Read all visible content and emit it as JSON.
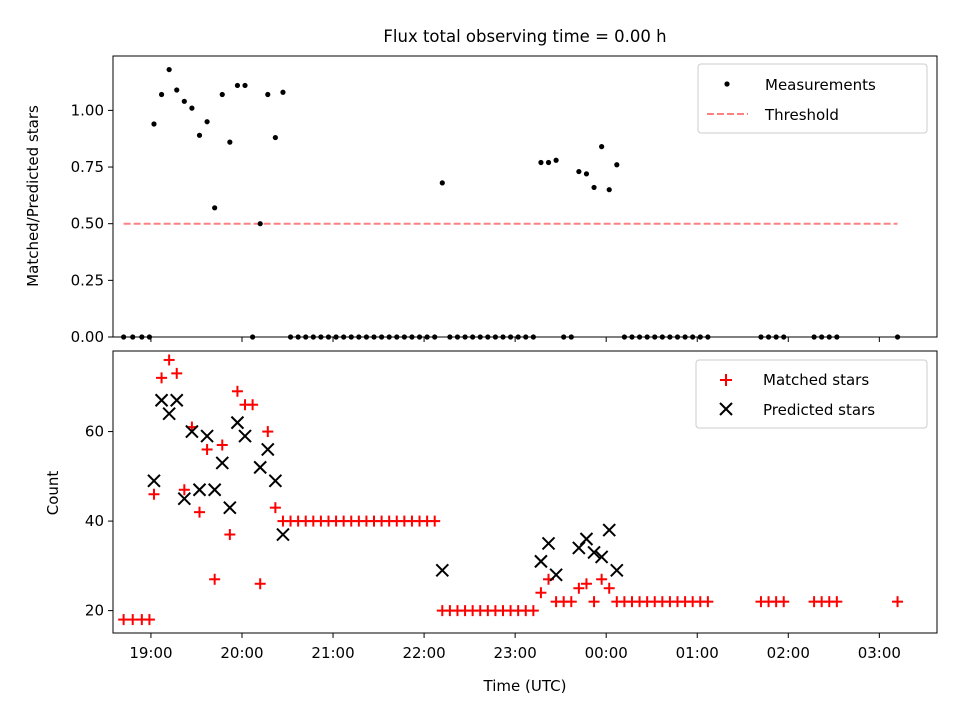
{
  "chart_data": [
    {
      "type": "scatter",
      "title": "Flux total observing time = 0.00 h",
      "xlabel": "",
      "ylabel": "Matched/Predicted stars",
      "ylim": [
        0,
        1.24
      ],
      "yticks": [
        "0.00",
        "0.25",
        "0.50",
        "0.75",
        "1.00"
      ],
      "xlim": [
        "18:35",
        "03:38"
      ],
      "legend_position": "upper right",
      "series": [
        {
          "name": "Measurements",
          "marker": "dot",
          "color": "#000000",
          "points": [
            [
              "18:42",
              0
            ],
            [
              "18:48",
              0
            ],
            [
              "18:54",
              0
            ],
            [
              "18:59",
              0
            ],
            [
              "19:02",
              0.94
            ],
            [
              "19:07",
              1.07
            ],
            [
              "19:12",
              1.18
            ],
            [
              "19:17",
              1.09
            ],
            [
              "19:22",
              1.04
            ],
            [
              "19:27",
              1.01
            ],
            [
              "19:32",
              0.89
            ],
            [
              "19:37",
              0.95
            ],
            [
              "19:42",
              0.57
            ],
            [
              "19:47",
              1.07
            ],
            [
              "19:52",
              0.86
            ],
            [
              "19:57",
              1.11
            ],
            [
              "20:02",
              1.11
            ],
            [
              "20:07",
              0
            ],
            [
              "20:12",
              0.5
            ],
            [
              "20:17",
              1.07
            ],
            [
              "20:22",
              0.88
            ],
            [
              "20:27",
              1.08
            ],
            [
              "20:32",
              0
            ],
            [
              "20:37",
              0
            ],
            [
              "20:42",
              0
            ],
            [
              "20:47",
              0
            ],
            [
              "20:52",
              0
            ],
            [
              "20:57",
              0
            ],
            [
              "21:02",
              0
            ],
            [
              "21:07",
              0
            ],
            [
              "21:12",
              0
            ],
            [
              "21:17",
              0
            ],
            [
              "21:22",
              0
            ],
            [
              "21:27",
              0
            ],
            [
              "21:32",
              0
            ],
            [
              "21:37",
              0
            ],
            [
              "21:42",
              0
            ],
            [
              "21:47",
              0
            ],
            [
              "21:52",
              0
            ],
            [
              "21:57",
              0
            ],
            [
              "22:02",
              0
            ],
            [
              "22:07",
              0
            ],
            [
              "22:12",
              0.68
            ],
            [
              "22:17",
              0
            ],
            [
              "22:22",
              0
            ],
            [
              "22:27",
              0
            ],
            [
              "22:32",
              0
            ],
            [
              "22:37",
              0
            ],
            [
              "22:42",
              0
            ],
            [
              "22:47",
              0
            ],
            [
              "22:52",
              0
            ],
            [
              "22:57",
              0
            ],
            [
              "23:02",
              0
            ],
            [
              "23:07",
              0
            ],
            [
              "23:12",
              0
            ],
            [
              "23:17",
              0.77
            ],
            [
              "23:22",
              0.77
            ],
            [
              "23:27",
              0.78
            ],
            [
              "23:32",
              0
            ],
            [
              "23:37",
              0
            ],
            [
              "23:42",
              0.73
            ],
            [
              "23:47",
              0.72
            ],
            [
              "23:52",
              0.66
            ],
            [
              "23:57",
              0.84
            ],
            [
              "00:02",
              0.65
            ],
            [
              "00:07",
              0.76
            ],
            [
              "00:12",
              0
            ],
            [
              "00:17",
              0
            ],
            [
              "00:22",
              0
            ],
            [
              "00:27",
              0
            ],
            [
              "00:32",
              0
            ],
            [
              "00:37",
              0
            ],
            [
              "00:42",
              0
            ],
            [
              "00:47",
              0
            ],
            [
              "00:52",
              0
            ],
            [
              "00:57",
              0
            ],
            [
              "01:02",
              0
            ],
            [
              "01:07",
              0
            ],
            [
              "01:42",
              0
            ],
            [
              "01:47",
              0
            ],
            [
              "01:52",
              0
            ],
            [
              "01:57",
              0
            ],
            [
              "02:17",
              0
            ],
            [
              "02:22",
              0
            ],
            [
              "02:27",
              0
            ],
            [
              "02:32",
              0
            ],
            [
              "03:12",
              0
            ]
          ]
        },
        {
          "name": "Threshold",
          "style": "dashed",
          "color": "#ff8080",
          "points": [
            [
              "18:42",
              0.5
            ],
            [
              "03:12",
              0.5
            ]
          ]
        }
      ]
    },
    {
      "type": "scatter",
      "title": "",
      "xlabel": "Time (UTC)",
      "ylabel": "Count",
      "ylim": [
        15,
        78
      ],
      "yticks": [
        "20",
        "40",
        "60"
      ],
      "xlim": [
        "18:35",
        "03:38"
      ],
      "xticks": [
        "19:00",
        "20:00",
        "21:00",
        "22:00",
        "23:00",
        "00:00",
        "01:00",
        "02:00",
        "03:00"
      ],
      "legend_position": "upper right",
      "series": [
        {
          "name": "Matched stars",
          "marker": "plus",
          "color": "#ff0000",
          "points": [
            [
              "18:42",
              18
            ],
            [
              "18:48",
              18
            ],
            [
              "18:54",
              18
            ],
            [
              "18:59",
              18
            ],
            [
              "19:02",
              46
            ],
            [
              "19:07",
              72
            ],
            [
              "19:12",
              76
            ],
            [
              "19:17",
              73
            ],
            [
              "19:22",
              47
            ],
            [
              "19:27",
              61
            ],
            [
              "19:32",
              42
            ],
            [
              "19:37",
              56
            ],
            [
              "19:42",
              27
            ],
            [
              "19:47",
              57
            ],
            [
              "19:52",
              37
            ],
            [
              "19:57",
              69
            ],
            [
              "20:02",
              66
            ],
            [
              "20:07",
              66
            ],
            [
              "20:12",
              26
            ],
            [
              "20:17",
              60
            ],
            [
              "20:22",
              43
            ],
            [
              "20:27",
              40
            ],
            [
              "20:32",
              40
            ],
            [
              "20:37",
              40
            ],
            [
              "20:42",
              40
            ],
            [
              "20:47",
              40
            ],
            [
              "20:52",
              40
            ],
            [
              "20:57",
              40
            ],
            [
              "21:02",
              40
            ],
            [
              "21:07",
              40
            ],
            [
              "21:12",
              40
            ],
            [
              "21:17",
              40
            ],
            [
              "21:22",
              40
            ],
            [
              "21:27",
              40
            ],
            [
              "21:32",
              40
            ],
            [
              "21:37",
              40
            ],
            [
              "21:42",
              40
            ],
            [
              "21:47",
              40
            ],
            [
              "21:52",
              40
            ],
            [
              "21:57",
              40
            ],
            [
              "22:02",
              40
            ],
            [
              "22:07",
              40
            ],
            [
              "22:12",
              20
            ],
            [
              "22:17",
              20
            ],
            [
              "22:22",
              20
            ],
            [
              "22:27",
              20
            ],
            [
              "22:32",
              20
            ],
            [
              "22:37",
              20
            ],
            [
              "22:42",
              20
            ],
            [
              "22:47",
              20
            ],
            [
              "22:52",
              20
            ],
            [
              "22:57",
              20
            ],
            [
              "23:02",
              20
            ],
            [
              "23:07",
              20
            ],
            [
              "23:12",
              20
            ],
            [
              "23:17",
              24
            ],
            [
              "23:22",
              27
            ],
            [
              "23:27",
              22
            ],
            [
              "23:32",
              22
            ],
            [
              "23:37",
              22
            ],
            [
              "23:42",
              25
            ],
            [
              "23:47",
              26
            ],
            [
              "23:52",
              22
            ],
            [
              "23:57",
              27
            ],
            [
              "00:02",
              25
            ],
            [
              "00:07",
              22
            ],
            [
              "00:12",
              22
            ],
            [
              "00:17",
              22
            ],
            [
              "00:22",
              22
            ],
            [
              "00:27",
              22
            ],
            [
              "00:32",
              22
            ],
            [
              "00:37",
              22
            ],
            [
              "00:42",
              22
            ],
            [
              "00:47",
              22
            ],
            [
              "00:52",
              22
            ],
            [
              "00:57",
              22
            ],
            [
              "01:02",
              22
            ],
            [
              "01:07",
              22
            ],
            [
              "01:42",
              22
            ],
            [
              "01:47",
              22
            ],
            [
              "01:52",
              22
            ],
            [
              "01:57",
              22
            ],
            [
              "02:17",
              22
            ],
            [
              "02:22",
              22
            ],
            [
              "02:27",
              22
            ],
            [
              "02:32",
              22
            ],
            [
              "03:12",
              22
            ]
          ]
        },
        {
          "name": "Predicted stars",
          "marker": "x",
          "color": "#000000",
          "points": [
            [
              "19:02",
              49
            ],
            [
              "19:07",
              67
            ],
            [
              "19:12",
              64
            ],
            [
              "19:17",
              67
            ],
            [
              "19:22",
              45
            ],
            [
              "19:27",
              60
            ],
            [
              "19:32",
              47
            ],
            [
              "19:37",
              59
            ],
            [
              "19:42",
              47
            ],
            [
              "19:47",
              53
            ],
            [
              "19:52",
              43
            ],
            [
              "19:57",
              62
            ],
            [
              "20:02",
              59
            ],
            [
              "20:12",
              52
            ],
            [
              "20:17",
              56
            ],
            [
              "20:22",
              49
            ],
            [
              "20:27",
              37
            ],
            [
              "22:12",
              29
            ],
            [
              "23:17",
              31
            ],
            [
              "23:22",
              35
            ],
            [
              "23:27",
              28
            ],
            [
              "23:42",
              34
            ],
            [
              "23:47",
              36
            ],
            [
              "23:52",
              33
            ],
            [
              "23:57",
              32
            ],
            [
              "00:02",
              38
            ],
            [
              "00:07",
              29
            ]
          ]
        }
      ]
    }
  ]
}
